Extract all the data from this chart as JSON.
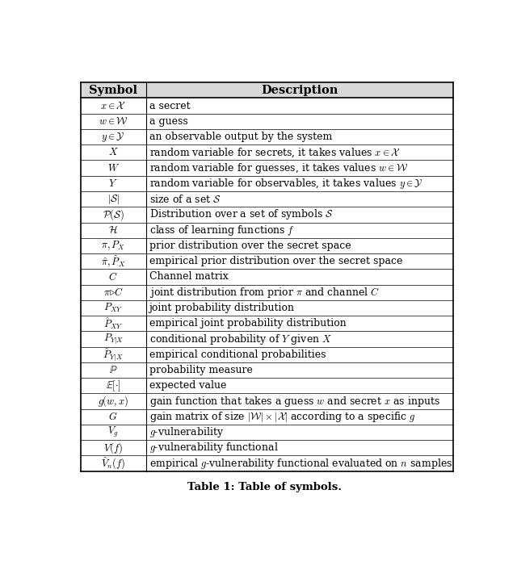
{
  "title": "Table 1: Table of symbols.",
  "rows": [
    [
      "$x \\in \\mathcal{X}$",
      "a secret"
    ],
    [
      "$w \\in \\mathcal{W}$",
      "a guess"
    ],
    [
      "$y \\in \\mathcal{Y}$",
      "an observable output by the system"
    ],
    [
      "$X$",
      "random variable for secrets, it takes values $x \\in \\mathcal{X}$"
    ],
    [
      "$W$",
      "random variable for guesses, it takes values $w \\in \\mathcal{W}$"
    ],
    [
      "$Y$",
      "random variable for observables, it takes values $y \\in \\mathcal{Y}$"
    ],
    [
      "$|\\mathcal{S}|$",
      "size of a set $\\mathcal{S}$"
    ],
    [
      "$\\mathcal{P}(\\mathcal{S})$",
      "Distribution over a set of symbols $\\mathcal{S}$"
    ],
    [
      "$\\mathcal{H}$",
      "class of learning functions $f$"
    ],
    [
      "$\\pi, P_X$",
      "prior distribution over the secret space"
    ],
    [
      "$\\hat{\\pi}, \\hat{P}_X$",
      "empirical prior distribution over the secret space"
    ],
    [
      "$C$",
      "Channel matrix"
    ],
    [
      "$\\pi {\\triangleright} C$",
      "joint distribution from prior $\\pi$ and channel $C$"
    ],
    [
      "$P_{XY}$",
      "joint probability distribution"
    ],
    [
      "$\\hat{P}_{XY}$",
      "empirical joint probability distribution"
    ],
    [
      "$P_{Y|X}$",
      "conditional probability of $Y$ given $X$"
    ],
    [
      "$\\hat{P}_{Y|X}$",
      "empirical conditional probabilities"
    ],
    [
      "$\\mathbb{P}$",
      "probability measure"
    ],
    [
      "$\\mathbb{E}[\\cdot]$",
      "expected value"
    ],
    [
      "$g(w, x)$",
      "gain function that takes a guess $w$ and secret $x$ as inputs"
    ],
    [
      "$G$",
      "gain matrix of size $|\\mathcal{W}| \\times |\\mathcal{X}|$ according to a specific $g$"
    ],
    [
      "$V_g$",
      "$g$-vulnerability"
    ],
    [
      "$V(f)$",
      "$g$-vulnerability functional"
    ],
    [
      "$\\hat{V}_n(f)$",
      "empirical $g$-vulnerability functional evaluated on $n$ samples"
    ]
  ],
  "figsize": [
    6.4,
    6.95
  ],
  "dpi": 100,
  "background_color": "#ffffff",
  "font_size": 9.0,
  "header_font_size": 10.5,
  "title_font_size": 9.5,
  "col_split": 0.175
}
